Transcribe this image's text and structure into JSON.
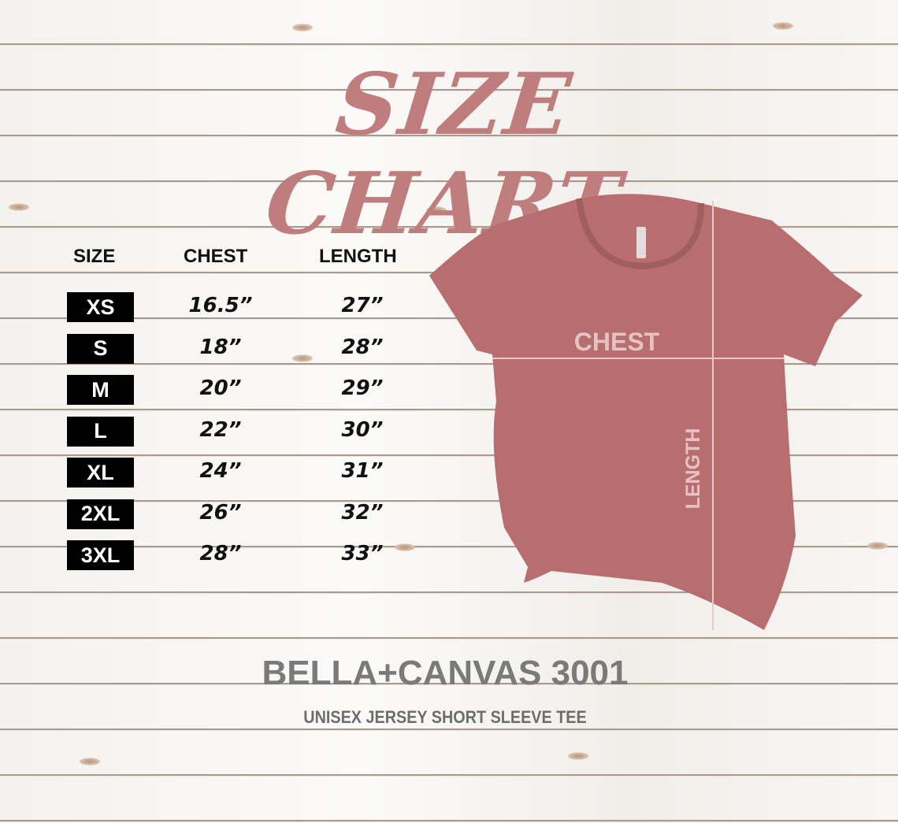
{
  "title": "SIZE CHART",
  "table": {
    "headers": [
      "SIZE",
      "CHEST",
      "LENGTH"
    ],
    "rows": [
      {
        "size": "XS",
        "chest": "16.5”",
        "length": "27”"
      },
      {
        "size": "S",
        "chest": "18”",
        "length": "28”"
      },
      {
        "size": "M",
        "chest": "20”",
        "length": "29”"
      },
      {
        "size": "L",
        "chest": "22”",
        "length": "30”"
      },
      {
        "size": "XL",
        "chest": "24”",
        "length": "31”"
      },
      {
        "size": "2XL",
        "chest": "26”",
        "length": "32”"
      },
      {
        "size": "3XL",
        "chest": "28”",
        "length": "33”"
      }
    ]
  },
  "shirt": {
    "chest_label": "CHEST",
    "length_label": "LENGTH",
    "color": "#b86e6e"
  },
  "brand": "BELLA+CANVAS 3001",
  "subtitle": "UNISEX JERSEY SHORT SLEEVE TEE",
  "colors": {
    "title": "#c07d7d",
    "size_box": "#000000",
    "brand": "#7a7a7a"
  }
}
